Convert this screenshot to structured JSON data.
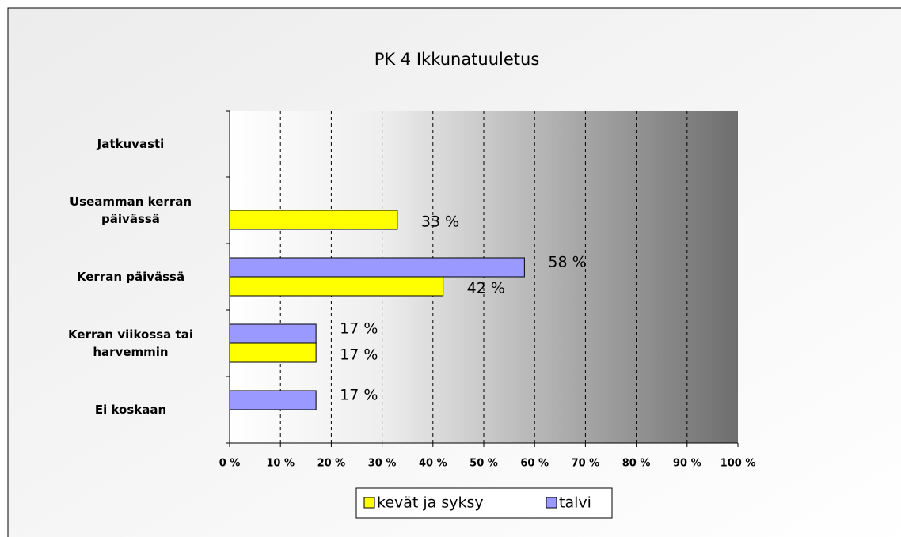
{
  "chart_data": {
    "type": "bar",
    "orientation": "horizontal",
    "title": "PK 4 Ikkunatuuletus",
    "categories": [
      "Jatkuvasti",
      "Useamman kerran päivässä",
      "Kerran päivässä",
      "Kerran viikossa tai harvemmin",
      "Ei koskaan"
    ],
    "series": [
      {
        "name": "kevät ja syksy",
        "color": "#ffff00",
        "values": [
          null,
          33,
          42,
          17,
          null
        ],
        "value_labels": [
          null,
          "33 %",
          "42 %",
          "17 %",
          null
        ]
      },
      {
        "name": "talvi",
        "color": "#9999ff",
        "values": [
          null,
          null,
          58,
          17,
          17
        ],
        "value_labels": [
          null,
          null,
          "58 %",
          "17 %",
          "17 %"
        ]
      }
    ],
    "xlim": [
      0,
      100
    ],
    "xticks": [
      {
        "value": 0,
        "label": "0 %"
      },
      {
        "value": 10,
        "label": "10 %"
      },
      {
        "value": 20,
        "label": "20 %"
      },
      {
        "value": 30,
        "label": "30 %"
      },
      {
        "value": 40,
        "label": "40 %"
      },
      {
        "value": 50,
        "label": "50 %"
      },
      {
        "value": 60,
        "label": "60 %"
      },
      {
        "value": 70,
        "label": "70 %"
      },
      {
        "value": 80,
        "label": "80 %"
      },
      {
        "value": 90,
        "label": "90 %"
      },
      {
        "value": 100,
        "label": "100 %"
      }
    ],
    "grid": true
  }
}
